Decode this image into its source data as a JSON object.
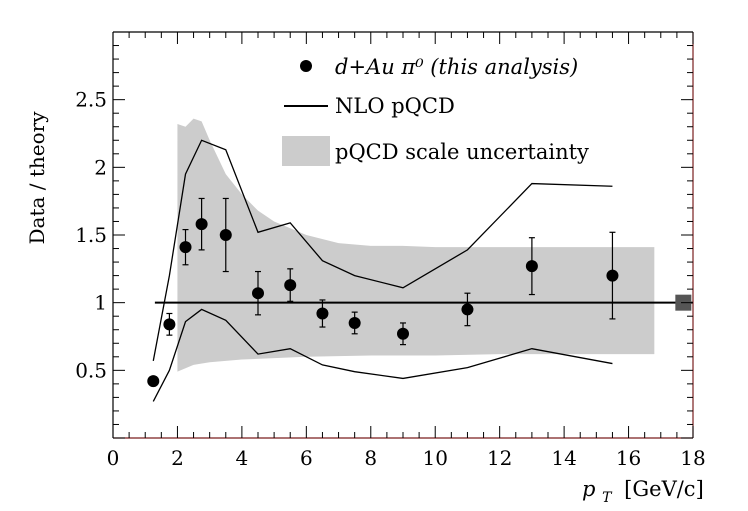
{
  "chart_data": {
    "type": "scatter",
    "xlabel_main": "p",
    "xlabel_sub": "T",
    "xlabel_unit": "[GeV/c]",
    "ylabel": "Data / theory",
    "xlim": [
      0,
      18
    ],
    "ylim": [
      0,
      3.0
    ],
    "x_ticks": [
      "0",
      "2",
      "4",
      "6",
      "8",
      "10",
      "12",
      "14",
      "16",
      "18"
    ],
    "y_ticks": [
      "0.5",
      "1",
      "1.5",
      "2",
      "2.5"
    ],
    "legend": {
      "position": "top-right",
      "data_label": "d+Au π⁰ (this analysis)",
      "line_label": "NLO pQCD",
      "band_label": "pQCD scale uncertainty"
    },
    "colors": {
      "band": "#cccccc",
      "marker": "#000000",
      "ref_line": "#000000",
      "norm_box": "#555555",
      "frame_right": "#7a1f1f"
    },
    "reference_line": 1.0,
    "data_points": [
      {
        "x": 1.25,
        "y": 0.42,
        "err": 0.0
      },
      {
        "x": 1.75,
        "y": 0.84,
        "err": 0.08
      },
      {
        "x": 2.25,
        "y": 1.41,
        "err": 0.13
      },
      {
        "x": 2.75,
        "y": 1.58,
        "err": 0.19
      },
      {
        "x": 3.5,
        "y": 1.5,
        "err": 0.27
      },
      {
        "x": 4.5,
        "y": 1.07,
        "err": 0.16
      },
      {
        "x": 5.5,
        "y": 1.13,
        "err": 0.12
      },
      {
        "x": 6.5,
        "y": 0.92,
        "err": 0.1
      },
      {
        "x": 7.5,
        "y": 0.85,
        "err": 0.08
      },
      {
        "x": 9.0,
        "y": 0.77,
        "err": 0.08
      },
      {
        "x": 11.0,
        "y": 0.95,
        "err": 0.12
      },
      {
        "x": 13.0,
        "y": 1.27,
        "err": 0.21
      },
      {
        "x": 15.5,
        "y": 1.2,
        "err": 0.32
      }
    ],
    "nlo_upper": [
      [
        1.25,
        0.57
      ],
      [
        1.75,
        1.2
      ],
      [
        2.25,
        1.95
      ],
      [
        2.75,
        2.2
      ],
      [
        3.5,
        2.13
      ],
      [
        4.5,
        1.52
      ],
      [
        5.5,
        1.59
      ],
      [
        6.5,
        1.31
      ],
      [
        7.5,
        1.2
      ],
      [
        9.0,
        1.11
      ],
      [
        11.0,
        1.39
      ],
      [
        13.0,
        1.88
      ],
      [
        15.5,
        1.86
      ]
    ],
    "nlo_lower": [
      [
        1.25,
        0.27
      ],
      [
        1.75,
        0.5
      ],
      [
        2.25,
        0.86
      ],
      [
        2.75,
        0.95
      ],
      [
        3.5,
        0.87
      ],
      [
        4.5,
        0.62
      ],
      [
        5.5,
        0.66
      ],
      [
        6.5,
        0.54
      ],
      [
        7.5,
        0.49
      ],
      [
        9.0,
        0.44
      ],
      [
        11.0,
        0.52
      ],
      [
        13.0,
        0.66
      ],
      [
        15.5,
        0.55
      ]
    ],
    "band_upper": [
      [
        2.0,
        2.32
      ],
      [
        2.25,
        2.3
      ],
      [
        2.5,
        2.36
      ],
      [
        2.75,
        2.34
      ],
      [
        3.0,
        2.2
      ],
      [
        3.5,
        1.95
      ],
      [
        4.0,
        1.8
      ],
      [
        4.5,
        1.68
      ],
      [
        5.0,
        1.6
      ],
      [
        6.0,
        1.5
      ],
      [
        7.0,
        1.44
      ],
      [
        8.0,
        1.42
      ],
      [
        9.0,
        1.42
      ],
      [
        10.0,
        1.41
      ],
      [
        12.0,
        1.41
      ],
      [
        14.0,
        1.41
      ],
      [
        16.8,
        1.41
      ]
    ],
    "band_lower": [
      [
        2.0,
        0.49
      ],
      [
        2.5,
        0.54
      ],
      [
        3.0,
        0.56
      ],
      [
        4.0,
        0.58
      ],
      [
        6.0,
        0.6
      ],
      [
        8.0,
        0.61
      ],
      [
        10.0,
        0.61
      ],
      [
        12.0,
        0.62
      ],
      [
        14.0,
        0.62
      ],
      [
        16.8,
        0.62
      ]
    ],
    "normalization_box": {
      "x": 17.7,
      "y": 1.0
    }
  }
}
